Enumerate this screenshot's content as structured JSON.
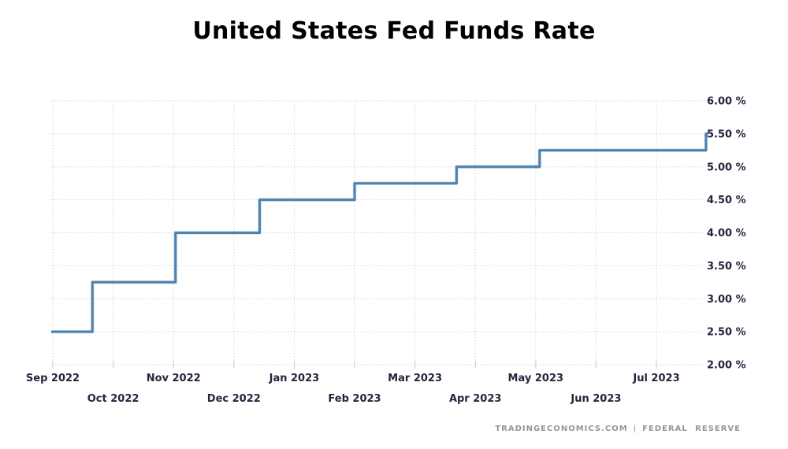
{
  "header": {
    "title": "United States Fed Funds Rate"
  },
  "watermark": {
    "site": "TRADINGECONOMICS.COM",
    "divider": "|",
    "source": "FEDERAL RESERVE"
  },
  "colors": {
    "background": "#ffffff",
    "line": "#4d81ae",
    "line_halo": "#a7c4dc",
    "grid": "#d4d4d4",
    "tick_mark": "#c8c8c8",
    "tick_text": "#21263c",
    "title_text": "#000000",
    "watermark_text": "#8f979f"
  },
  "chart_data": {
    "type": "line",
    "step": true,
    "title": "United States Fed Funds Rate",
    "xlabel": "",
    "ylabel": "",
    "unit": "%",
    "ylim": [
      2.0,
      6.0
    ],
    "y_tick_step": 0.5,
    "grid": "dotted",
    "legend": "none",
    "x_ticks": [
      {
        "m": 0,
        "label": "Sep 2022"
      },
      {
        "m": 1,
        "label": "Oct 2022"
      },
      {
        "m": 2,
        "label": "Nov 2022"
      },
      {
        "m": 3,
        "label": "Dec 2022"
      },
      {
        "m": 4,
        "label": "Jan 2023"
      },
      {
        "m": 5,
        "label": "Feb 2023"
      },
      {
        "m": 6,
        "label": "Mar 2023"
      },
      {
        "m": 7,
        "label": "Apr 2023"
      },
      {
        "m": 8,
        "label": "May 2023"
      },
      {
        "m": 9,
        "label": "Jun 2023"
      },
      {
        "m": 10,
        "label": "Jul 2023"
      }
    ],
    "y_ticks": [
      {
        "value": 6.0,
        "label": "6.00 %"
      },
      {
        "value": 5.5,
        "label": "5.50 %"
      },
      {
        "value": 5.0,
        "label": "5.00 %"
      },
      {
        "value": 4.5,
        "label": "4.50 %"
      },
      {
        "value": 4.0,
        "label": "4.00 %"
      },
      {
        "value": 3.5,
        "label": "3.50 %"
      },
      {
        "value": 3.0,
        "label": "3.00 %"
      },
      {
        "value": 2.5,
        "label": "2.50 %"
      },
      {
        "value": 2.0,
        "label": "2.00 %"
      }
    ],
    "series": [
      {
        "name": "United States Fed Funds Rate",
        "points": [
          {
            "date": "2022-09-01",
            "value": 2.5
          },
          {
            "date": "2022-09-21",
            "value": 3.25
          },
          {
            "date": "2022-11-02",
            "value": 4.0
          },
          {
            "date": "2022-12-14",
            "value": 4.5
          },
          {
            "date": "2023-02-01",
            "value": 4.75
          },
          {
            "date": "2023-03-22",
            "value": 5.0
          },
          {
            "date": "2023-05-03",
            "value": 5.25
          },
          {
            "date": "2023-07-26",
            "value": 5.5
          }
        ],
        "end_date": "2023-07-27"
      }
    ]
  }
}
